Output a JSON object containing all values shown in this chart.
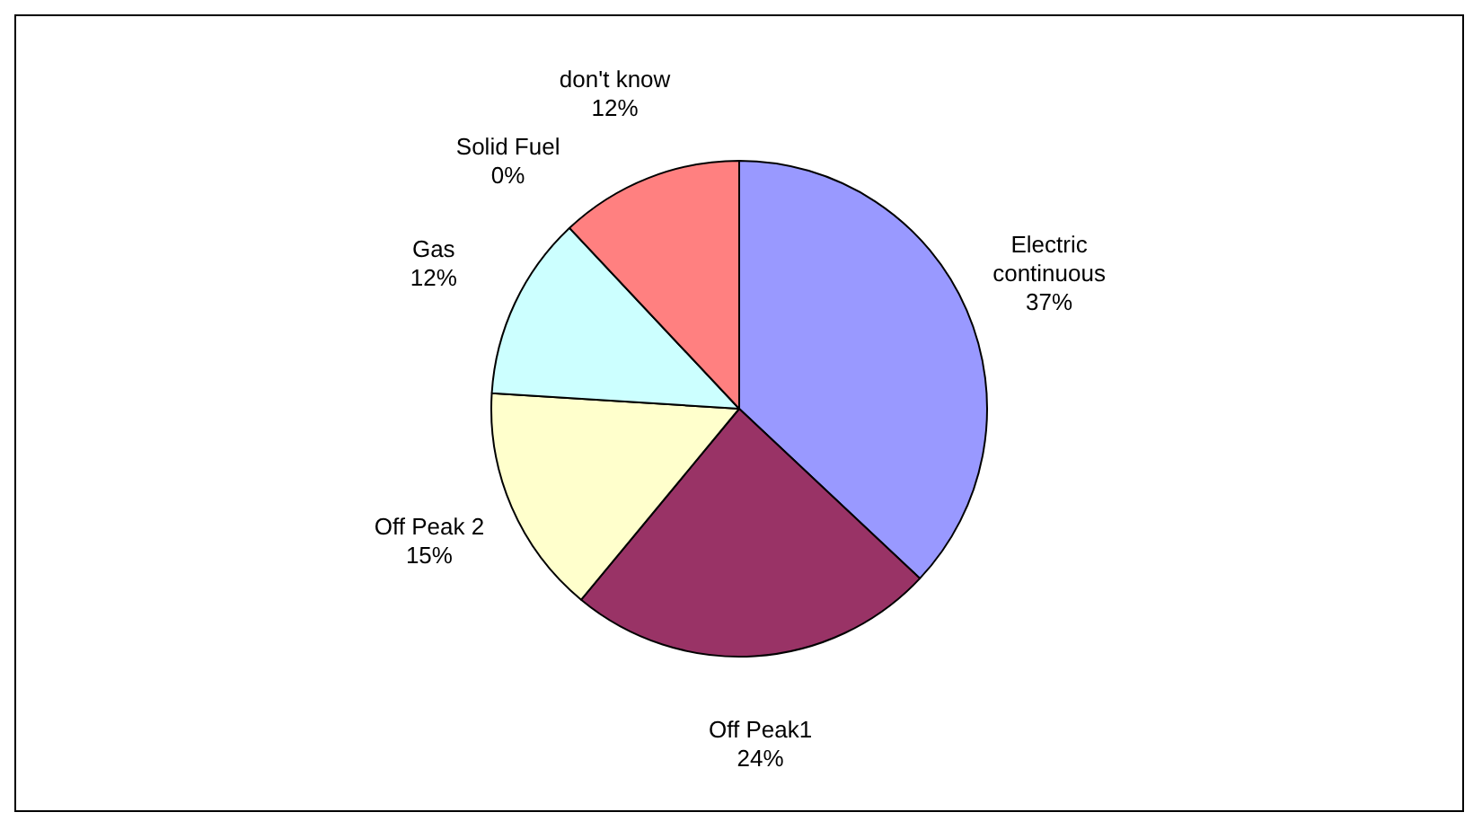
{
  "chart_data": {
    "type": "pie",
    "categories": [
      "Electric continuous",
      "Off Peak1",
      "Off Peak 2",
      "Gas",
      "Solid Fuel",
      "don't know"
    ],
    "values": [
      37,
      24,
      15,
      12,
      0,
      12
    ],
    "colors": [
      "#9999ff",
      "#993366",
      "#ffffcc",
      "#ccffff",
      "#660066",
      "#ff8080"
    ],
    "value_labels": [
      "37%",
      "24%",
      "15%",
      "12%",
      "0%",
      "12%"
    ],
    "legend": false
  }
}
